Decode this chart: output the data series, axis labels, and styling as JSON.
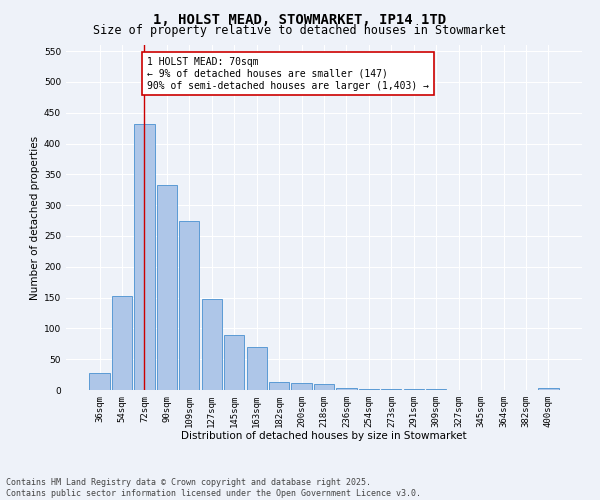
{
  "title": "1, HOLST MEAD, STOWMARKET, IP14 1TD",
  "subtitle": "Size of property relative to detached houses in Stowmarket",
  "xlabel": "Distribution of detached houses by size in Stowmarket",
  "ylabel": "Number of detached properties",
  "bar_labels": [
    "36sqm",
    "54sqm",
    "72sqm",
    "90sqm",
    "109sqm",
    "127sqm",
    "145sqm",
    "163sqm",
    "182sqm",
    "200sqm",
    "218sqm",
    "236sqm",
    "254sqm",
    "273sqm",
    "291sqm",
    "309sqm",
    "327sqm",
    "345sqm",
    "364sqm",
    "382sqm",
    "400sqm"
  ],
  "bar_values": [
    28,
    152,
    432,
    332,
    275,
    147,
    90,
    70,
    13,
    12,
    10,
    4,
    1,
    1,
    1,
    1,
    0,
    0,
    0,
    0,
    4
  ],
  "bar_color": "#aec6e8",
  "bar_edge_color": "#5b9bd5",
  "vline_x_index": 2,
  "vline_color": "#cc0000",
  "annotation_text": "1 HOLST MEAD: 70sqm\n← 9% of detached houses are smaller (147)\n90% of semi-detached houses are larger (1,403) →",
  "annotation_box_color": "#ffffff",
  "annotation_box_edge_color": "#cc0000",
  "ylim": [
    0,
    560
  ],
  "yticks": [
    0,
    50,
    100,
    150,
    200,
    250,
    300,
    350,
    400,
    450,
    500,
    550
  ],
  "footer_line1": "Contains HM Land Registry data © Crown copyright and database right 2025.",
  "footer_line2": "Contains public sector information licensed under the Open Government Licence v3.0.",
  "bg_color": "#eef2f9",
  "grid_color": "#ffffff",
  "title_fontsize": 10,
  "subtitle_fontsize": 8.5,
  "axis_label_fontsize": 7.5,
  "tick_fontsize": 6.5,
  "annotation_fontsize": 7,
  "footer_fontsize": 6
}
